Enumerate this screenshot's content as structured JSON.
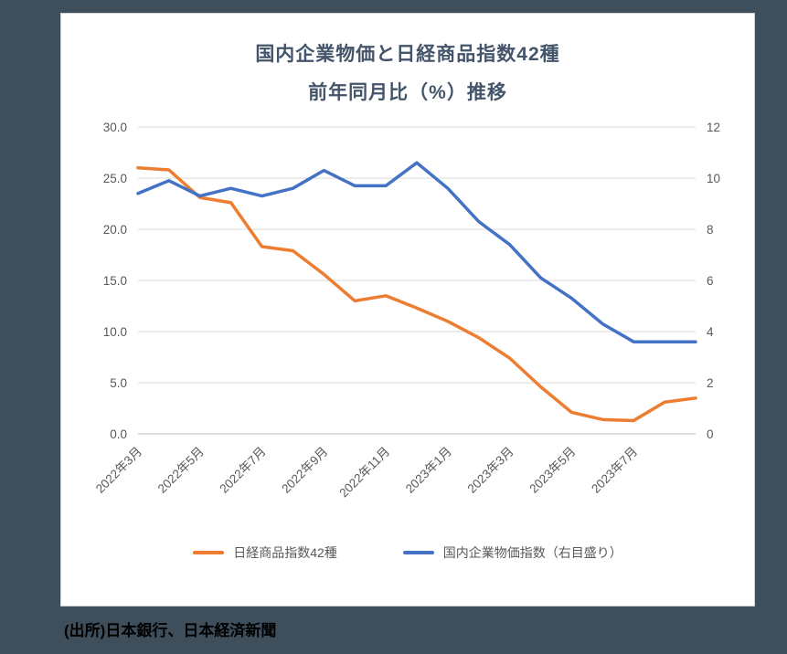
{
  "page": {
    "source_note": "(出所)日本銀行、日本経済新聞"
  },
  "colors": {
    "page_bg": "#3E4F5B",
    "card_bg": "#FFFFFF",
    "card_border": "#CFCFCF",
    "title_text": "#44546A",
    "axis_text": "#595959",
    "gridline": "#D9D9D9",
    "axis_line": "#BFBFBF",
    "series_orange": "#ED7D31",
    "series_blue": "#4472C4"
  },
  "chart_data": {
    "type": "line",
    "title_lines": [
      "国内企業物価と日経商品指数42種",
      "前年同月比（%）推移"
    ],
    "x": [
      "2022年3月",
      "2022年4月",
      "2022年5月",
      "2022年6月",
      "2022年7月",
      "2022年8月",
      "2022年9月",
      "2022年10月",
      "2022年11月",
      "2022年12月",
      "2023年1月",
      "2023年2月",
      "2023年3月",
      "2023年4月",
      "2023年5月",
      "2023年6月",
      "2023年7月",
      "2023年8月",
      "2023年9月"
    ],
    "x_tick_labels": [
      "2022年3月",
      "2022年5月",
      "2022年7月",
      "2022年9月",
      "2022年11月",
      "2023年1月",
      "2023年3月",
      "2023年5月",
      "2023年7月"
    ],
    "x_tick_every": 2,
    "series": [
      {
        "name": "日経商品指数42種",
        "axis": "left",
        "color": "#ED7D31",
        "values": [
          26.0,
          25.8,
          23.1,
          22.6,
          18.3,
          17.9,
          15.6,
          13.0,
          13.5,
          12.3,
          11.0,
          9.4,
          7.4,
          4.6,
          2.1,
          1.4,
          1.3,
          3.1,
          3.5
        ]
      },
      {
        "name": "国内企業物価指数（右目盛り）",
        "axis": "right",
        "color": "#4472C4",
        "values": [
          9.4,
          9.9,
          9.3,
          9.6,
          9.3,
          9.6,
          10.3,
          9.7,
          9.7,
          10.6,
          9.6,
          8.3,
          7.4,
          6.1,
          5.3,
          4.3,
          3.6,
          3.6,
          3.6
        ]
      }
    ],
    "left_axis": {
      "min": 0,
      "max": 30,
      "tick_labels": [
        "0.0",
        "5.0",
        "10.0",
        "15.0",
        "20.0",
        "25.0",
        "30.0"
      ]
    },
    "right_axis": {
      "min": 0,
      "max": 12,
      "tick_labels": [
        "0",
        "2",
        "4",
        "6",
        "8",
        "10",
        "12"
      ]
    },
    "legend_position": "bottom",
    "grid": "horizontal"
  }
}
